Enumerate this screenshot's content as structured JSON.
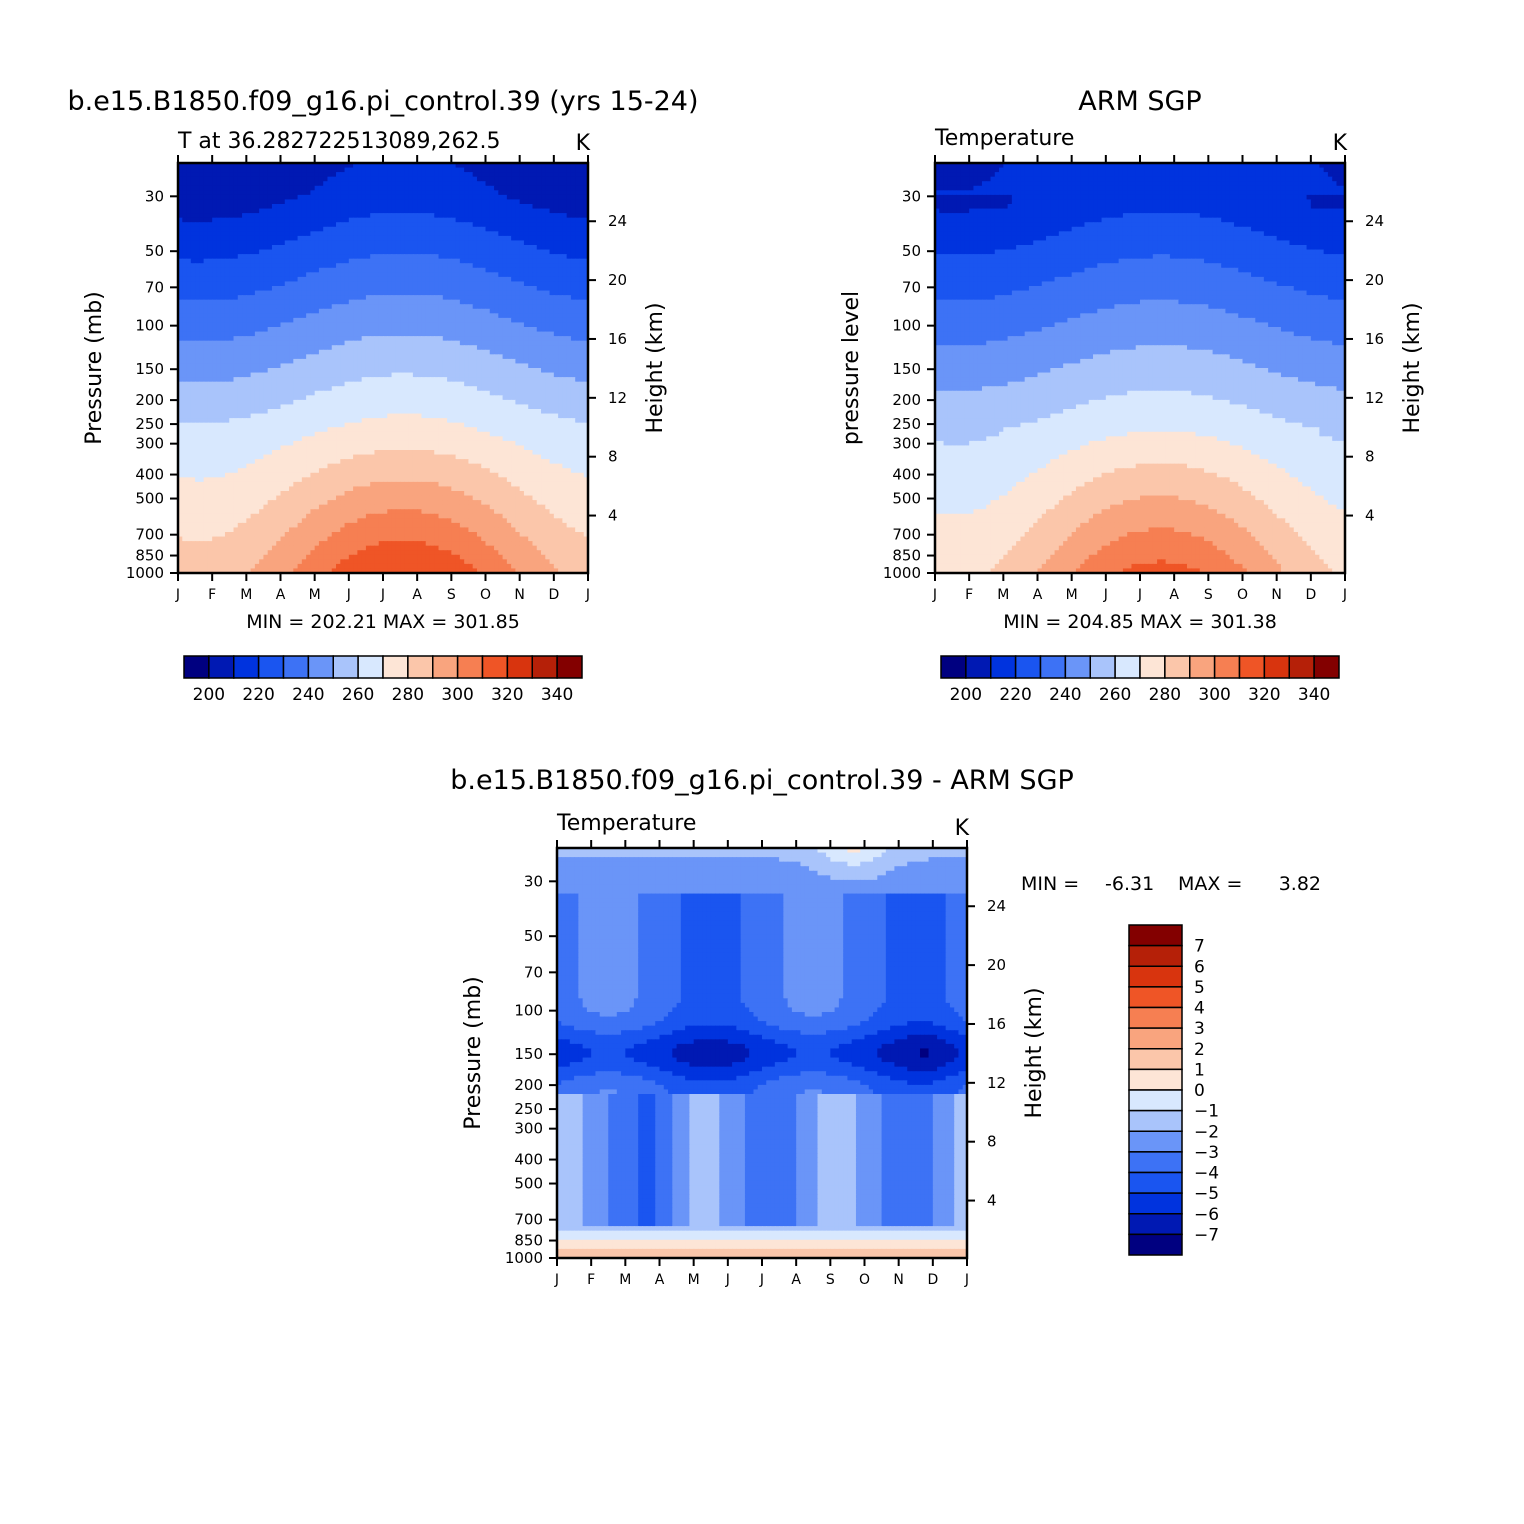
{
  "colors": {
    "blues": [
      "#000080",
      "#0019b3",
      "#0033de",
      "#1a55f0",
      "#3d72f5",
      "#6a95f8",
      "#a9c4fb",
      "#d8e8fe"
    ],
    "reds": [
      "#fde5d6",
      "#fbc6aa",
      "#f9a47e",
      "#f67f52",
      "#ef5526",
      "#d8340e",
      "#b52008",
      "#830000"
    ]
  },
  "chart_data": [
    {
      "type": "heatmap",
      "title": "b.e15.B1850.f09_g16.pi_control.39 (yrs 15-24)",
      "subtitle_left": "T at 36.282722513089,262.5",
      "subtitle_right": "K",
      "ylabel": "Pressure (mb)",
      "ylabel_right": "Height (km)",
      "x_ticks": [
        "J",
        "F",
        "M",
        "A",
        "M",
        "J",
        "J",
        "A",
        "S",
        "O",
        "N",
        "D",
        "J"
      ],
      "y_ticks": [
        "30",
        "50",
        "70",
        "100",
        "150",
        "200",
        "250",
        "300",
        "400",
        "500",
        "700",
        "850",
        "1000"
      ],
      "y_ticks_right": [
        "24",
        "20",
        "16",
        "12",
        "8",
        "4"
      ],
      "stats": "MIN = 202.21 MAX = 301.85",
      "min": 202.21,
      "max": 301.85,
      "colorbar_ticks": [
        "200",
        "220",
        "240",
        "260",
        "280",
        "300",
        "320",
        "340"
      ],
      "colorbar_levels": [
        190,
        200,
        210,
        220,
        230,
        240,
        250,
        260,
        270,
        280,
        290,
        300,
        310,
        320,
        330,
        340,
        350
      ]
    },
    {
      "type": "heatmap",
      "title": "ARM SGP",
      "subtitle_left": "Temperature",
      "subtitle_right": "K",
      "ylabel": "pressure level",
      "ylabel_right": "Height (km)",
      "x_ticks": [
        "J",
        "F",
        "M",
        "A",
        "M",
        "J",
        "J",
        "A",
        "S",
        "O",
        "N",
        "D",
        "J"
      ],
      "y_ticks": [
        "30",
        "50",
        "70",
        "100",
        "150",
        "200",
        "250",
        "300",
        "400",
        "500",
        "700",
        "850",
        "1000"
      ],
      "y_ticks_right": [
        "24",
        "20",
        "16",
        "12",
        "8",
        "4"
      ],
      "stats": "MIN = 204.85 MAX = 301.38",
      "min": 204.85,
      "max": 301.38,
      "colorbar_ticks": [
        "200",
        "220",
        "240",
        "260",
        "280",
        "300",
        "320",
        "340"
      ],
      "colorbar_levels": [
        190,
        200,
        210,
        220,
        230,
        240,
        250,
        260,
        270,
        280,
        290,
        300,
        310,
        320,
        330,
        340,
        350
      ]
    },
    {
      "type": "heatmap",
      "title": "b.e15.B1850.f09_g16.pi_control.39 - ARM SGP",
      "subtitle_left": "Temperature",
      "subtitle_right": "K",
      "ylabel": "Pressure (mb)",
      "ylabel_right": "Height (km)",
      "x_ticks": [
        "J",
        "F",
        "M",
        "A",
        "M",
        "J",
        "J",
        "A",
        "S",
        "O",
        "N",
        "D",
        "J"
      ],
      "y_ticks": [
        "30",
        "50",
        "70",
        "100",
        "150",
        "200",
        "250",
        "300",
        "400",
        "500",
        "700",
        "850",
        "1000"
      ],
      "y_ticks_right": [
        "24",
        "20",
        "16",
        "12",
        "8",
        "4"
      ],
      "stats_min_label": "MIN =",
      "stats_min_value": "-6.31",
      "stats_max_label": "MAX =",
      "stats_max_value": "3.82",
      "min": -6.31,
      "max": 3.82,
      "colorbar_ticks": [
        "7",
        "6",
        "5",
        "4",
        "3",
        "2",
        "1",
        "0",
        "-1",
        "-2",
        "-3",
        "-4",
        "-5",
        "-6",
        "-7"
      ]
    }
  ]
}
